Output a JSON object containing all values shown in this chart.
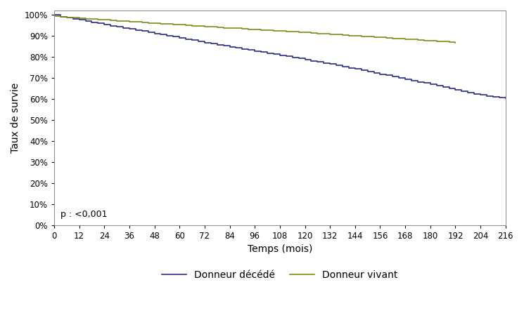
{
  "title": "",
  "xlabel": "Temps (mois)",
  "ylabel": "Taux de survie",
  "xlim": [
    0,
    216
  ],
  "ylim": [
    0.0,
    1.02
  ],
  "xticks": [
    0,
    12,
    24,
    36,
    48,
    60,
    72,
    84,
    96,
    108,
    120,
    132,
    144,
    156,
    168,
    180,
    192,
    204,
    216
  ],
  "yticks": [
    0.0,
    0.1,
    0.2,
    0.3,
    0.4,
    0.5,
    0.6,
    0.7,
    0.8,
    0.9,
    1.0
  ],
  "pvalue_text": "p : <0,001",
  "legend_labels": [
    "Donneur décédé",
    "Donneur vivant"
  ],
  "color_deceased": "#2b2b8f",
  "color_living": "#7a8c1a",
  "deceased_x": [
    0,
    3,
    6,
    9,
    12,
    15,
    18,
    21,
    24,
    27,
    30,
    33,
    36,
    39,
    42,
    45,
    48,
    51,
    54,
    57,
    60,
    63,
    66,
    69,
    72,
    75,
    78,
    81,
    84,
    87,
    90,
    93,
    96,
    99,
    102,
    105,
    108,
    111,
    114,
    117,
    120,
    123,
    126,
    129,
    132,
    135,
    138,
    141,
    144,
    147,
    150,
    153,
    156,
    159,
    162,
    165,
    168,
    171,
    174,
    177,
    180,
    183,
    186,
    189,
    192,
    195,
    198,
    201,
    204,
    207,
    210,
    213,
    216
  ],
  "deceased_y": [
    1.0,
    0.991,
    0.985,
    0.98,
    0.975,
    0.97,
    0.964,
    0.959,
    0.953,
    0.948,
    0.943,
    0.938,
    0.932,
    0.927,
    0.922,
    0.916,
    0.91,
    0.905,
    0.9,
    0.895,
    0.889,
    0.884,
    0.879,
    0.874,
    0.868,
    0.863,
    0.858,
    0.853,
    0.847,
    0.842,
    0.837,
    0.833,
    0.828,
    0.823,
    0.818,
    0.813,
    0.808,
    0.803,
    0.797,
    0.792,
    0.787,
    0.781,
    0.776,
    0.77,
    0.765,
    0.759,
    0.754,
    0.748,
    0.742,
    0.736,
    0.73,
    0.724,
    0.718,
    0.712,
    0.706,
    0.7,
    0.694,
    0.687,
    0.681,
    0.675,
    0.669,
    0.663,
    0.657,
    0.65,
    0.644,
    0.637,
    0.631,
    0.624,
    0.618,
    0.613,
    0.608,
    0.606,
    0.604
  ],
  "living_x": [
    0,
    3,
    6,
    9,
    12,
    15,
    18,
    21,
    24,
    27,
    30,
    33,
    36,
    39,
    42,
    45,
    48,
    51,
    54,
    57,
    60,
    63,
    66,
    69,
    72,
    75,
    78,
    81,
    84,
    87,
    90,
    93,
    96,
    99,
    102,
    105,
    108,
    111,
    114,
    117,
    120,
    123,
    126,
    129,
    132,
    135,
    138,
    141,
    144,
    147,
    150,
    153,
    156,
    159,
    162,
    165,
    168,
    171,
    174,
    177,
    180,
    183,
    186,
    189,
    192
  ],
  "living_y": [
    0.993,
    0.99,
    0.987,
    0.985,
    0.983,
    0.981,
    0.979,
    0.977,
    0.975,
    0.973,
    0.971,
    0.969,
    0.967,
    0.965,
    0.963,
    0.961,
    0.959,
    0.957,
    0.956,
    0.954,
    0.952,
    0.95,
    0.948,
    0.946,
    0.944,
    0.942,
    0.94,
    0.938,
    0.936,
    0.935,
    0.933,
    0.931,
    0.929,
    0.927,
    0.926,
    0.924,
    0.922,
    0.921,
    0.919,
    0.917,
    0.915,
    0.913,
    0.911,
    0.909,
    0.907,
    0.905,
    0.903,
    0.901,
    0.899,
    0.898,
    0.896,
    0.894,
    0.892,
    0.89,
    0.888,
    0.886,
    0.884,
    0.882,
    0.88,
    0.878,
    0.876,
    0.874,
    0.872,
    0.87,
    0.867
  ],
  "linewidth": 1.2,
  "font_size_labels": 10,
  "font_size_ticks": 8.5,
  "font_size_legend": 10,
  "font_size_annotation": 9,
  "background_color": "#ffffff"
}
